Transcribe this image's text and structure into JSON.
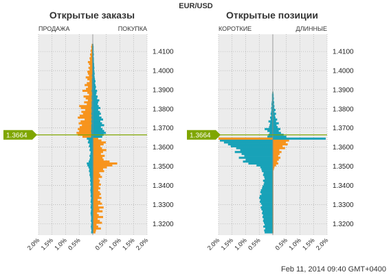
{
  "header": {
    "symbol": "EUR/USD",
    "timestamp": "Feb 11, 2014 09:40 GMT+0400"
  },
  "colors": {
    "orange": "#f7941d",
    "teal": "#18a2b8",
    "green": "#7fa600",
    "plot_bg": "#ececec",
    "grid": "#9a9a9a"
  },
  "current_price_label": "1.3664",
  "chart_data": [
    {
      "type": "bar",
      "orientation": "horizontal",
      "title": "Открытые заказы",
      "left_label": "ПРОДАЖА",
      "right_label": "ПОКУПКА",
      "current_price": 1.3664,
      "ylim": [
        1.314,
        1.419
      ],
      "xlim": [
        -2.0,
        2.0
      ],
      "y_ticks": [
        "1.4100",
        "1.4000",
        "1.3900",
        "1.3800",
        "1.3700",
        "1.3600",
        "1.3500",
        "1.3400",
        "1.3300",
        "1.3200"
      ],
      "x_ticks": [
        "2.0%",
        "1.5%",
        "1.0%",
        "0.5%",
        "0.5%",
        "1.0%",
        "1.5%",
        "2.0%"
      ],
      "bin_step": 0.001,
      "bins_bottom": [
        1.315,
        1.316,
        1.317,
        1.318,
        1.319,
        1.32,
        1.321,
        1.322,
        1.323,
        1.324,
        1.325,
        1.326,
        1.327,
        1.328,
        1.329,
        1.33,
        1.331,
        1.332,
        1.333,
        1.334,
        1.335,
        1.336,
        1.337,
        1.338,
        1.339,
        1.34,
        1.341,
        1.342,
        1.343,
        1.344,
        1.345,
        1.346,
        1.347,
        1.348,
        1.349,
        1.35,
        1.351,
        1.352,
        1.353,
        1.354,
        1.355,
        1.356,
        1.357,
        1.358,
        1.359,
        1.36,
        1.361,
        1.362,
        1.363,
        1.364,
        1.365,
        1.366,
        1.367,
        1.368,
        1.369,
        1.37,
        1.371,
        1.372,
        1.373,
        1.374,
        1.375,
        1.376,
        1.377,
        1.378,
        1.379,
        1.38,
        1.381,
        1.382,
        1.383,
        1.384,
        1.385,
        1.386,
        1.387,
        1.388,
        1.389,
        1.39,
        1.391,
        1.392,
        1.393,
        1.394,
        1.395,
        1.396,
        1.397,
        1.398,
        1.399,
        1.4,
        1.401,
        1.402,
        1.403,
        1.404,
        1.405,
        1.406,
        1.407,
        1.408,
        1.409,
        1.41,
        1.411,
        1.412,
        1.413
      ],
      "series": [
        {
          "side": "left",
          "color": "orange",
          "values": [
            0.02,
            0.02,
            0.02,
            0.03,
            0.02,
            0.02,
            0.03,
            0.02,
            0.02,
            0.03,
            0.02,
            0.03,
            0.02,
            0.03,
            0.02,
            0.02,
            0.03,
            0.02,
            0.02,
            0.03,
            0.02,
            0.03,
            0.02,
            0.02,
            0.03,
            0.02,
            0.02,
            0.03,
            0.02,
            0.03,
            0.02,
            0.03,
            0.02,
            0.03,
            0.02,
            0.02,
            0.03,
            0.02,
            0.03,
            0.02,
            0.02,
            0.03,
            0.02,
            0.03,
            0.02,
            0.02,
            0.02,
            0.03,
            0.02,
            0.02,
            0.38,
            0.55,
            0.6,
            0.5,
            0.55,
            0.48,
            0.4,
            0.52,
            0.45,
            0.3,
            0.55,
            0.48,
            0.36,
            0.42,
            0.28,
            0.44,
            0.5,
            0.22,
            0.32,
            0.18,
            0.26,
            0.34,
            0.14,
            0.2,
            0.38,
            0.25,
            0.18,
            0.3,
            0.22,
            0.12,
            0.2,
            0.26,
            0.14,
            0.18,
            0.2,
            0.12,
            0.16,
            0.1,
            0.14,
            0.18,
            0.1,
            0.12,
            0.08,
            0.1,
            0.06,
            0.08,
            0.05,
            0.06,
            0.04
          ]
        },
        {
          "side": "left",
          "color": "teal",
          "values": [
            0.06,
            0.05,
            0.06,
            0.07,
            0.06,
            0.05,
            0.07,
            0.06,
            0.06,
            0.07,
            0.08,
            0.07,
            0.06,
            0.08,
            0.07,
            0.06,
            0.08,
            0.07,
            0.06,
            0.08,
            0.07,
            0.08,
            0.09,
            0.08,
            0.07,
            0.09,
            0.08,
            0.1,
            0.09,
            0.1,
            0.12,
            0.11,
            0.14,
            0.13,
            0.16,
            0.2,
            0.22,
            0.15,
            0.12,
            0.1,
            0.12,
            0.09,
            0.08,
            0.12,
            0.1,
            0.14,
            0.12,
            0.18,
            0.16,
            0.22,
            0.06,
            0.05,
            0.05,
            0.06,
            0.05,
            0.05,
            0.05,
            0.04,
            0.05,
            0.04,
            0.05,
            0.04,
            0.05,
            0.04,
            0.04,
            0.05,
            0.04,
            0.04,
            0.04,
            0.03,
            0.04,
            0.04,
            0.03,
            0.03,
            0.04,
            0.03,
            0.03,
            0.03,
            0.03,
            0.03,
            0.03,
            0.02,
            0.03,
            0.02,
            0.02,
            0.02,
            0.02,
            0.02,
            0.02,
            0.02,
            0.02,
            0.02,
            0.02,
            0.02,
            0.02,
            0.02,
            0.02,
            0.02,
            0.02
          ]
        },
        {
          "side": "right",
          "color": "orange",
          "values": [
            0.1,
            0.12,
            0.3,
            0.2,
            0.14,
            0.34,
            0.26,
            0.18,
            0.38,
            0.22,
            0.16,
            0.36,
            0.24,
            0.4,
            0.2,
            0.34,
            0.28,
            0.18,
            0.32,
            0.24,
            0.3,
            0.26,
            0.2,
            0.28,
            0.22,
            0.3,
            0.24,
            0.26,
            0.22,
            0.34,
            0.28,
            0.24,
            0.42,
            0.38,
            0.52,
            0.72,
            0.9,
            0.62,
            0.4,
            0.36,
            0.44,
            0.3,
            0.38,
            0.5,
            0.34,
            0.28,
            0.4,
            0.48,
            0.32,
            0.2,
            0.08,
            0.07,
            0.06,
            0.06,
            0.05,
            0.05,
            0.04,
            0.05,
            0.04,
            0.04,
            0.04,
            0.03,
            0.04,
            0.03,
            0.03,
            0.03,
            0.03,
            0.03,
            0.02,
            0.03,
            0.02,
            0.02,
            0.02,
            0.02,
            0.02,
            0.02,
            0.02,
            0.02,
            0.02,
            0.02,
            0.02,
            0.02,
            0.02,
            0.02,
            0.02,
            0.02,
            0.02,
            0.02,
            0.02,
            0.02,
            0.02,
            0.02,
            0.02,
            0.02,
            0.02,
            0.02,
            0.02,
            0.02,
            0.02
          ]
        },
        {
          "side": "right",
          "color": "teal",
          "values": [
            0.02,
            0.02,
            0.02,
            0.02,
            0.02,
            0.02,
            0.02,
            0.02,
            0.02,
            0.02,
            0.02,
            0.02,
            0.02,
            0.02,
            0.02,
            0.02,
            0.02,
            0.02,
            0.02,
            0.02,
            0.02,
            0.02,
            0.02,
            0.02,
            0.02,
            0.02,
            0.02,
            0.02,
            0.02,
            0.02,
            0.02,
            0.02,
            0.02,
            0.02,
            0.02,
            0.02,
            0.02,
            0.02,
            0.02,
            0.02,
            0.02,
            0.02,
            0.02,
            0.02,
            0.02,
            0.02,
            0.02,
            0.02,
            0.02,
            0.02,
            0.35,
            0.4,
            0.48,
            0.42,
            0.36,
            0.3,
            0.42,
            0.34,
            0.28,
            0.38,
            0.32,
            0.24,
            0.3,
            0.26,
            0.2,
            0.28,
            0.22,
            0.18,
            0.2,
            0.24,
            0.16,
            0.18,
            0.12,
            0.14,
            0.16,
            0.1,
            0.12,
            0.1,
            0.08,
            0.1,
            0.08,
            0.07,
            0.06,
            0.07,
            0.06,
            0.05,
            0.06,
            0.05,
            0.05,
            0.04,
            0.04,
            0.04,
            0.03,
            0.04,
            0.03,
            0.03,
            0.03,
            0.03,
            0.02
          ]
        }
      ]
    },
    {
      "type": "bar",
      "orientation": "horizontal",
      "title": "Открытые позиции",
      "left_label": "КОРОТКИЕ",
      "right_label": "ДЛИННЫЕ",
      "current_price": 1.3664,
      "ylim": [
        1.314,
        1.419
      ],
      "xlim": [
        -2.0,
        2.0
      ],
      "y_ticks": [
        "1.4100",
        "1.4000",
        "1.3900",
        "1.3800",
        "1.3700",
        "1.3600",
        "1.3500",
        "1.3400",
        "1.3300",
        "1.3200"
      ],
      "x_ticks": [
        "2.0%",
        "1.5%",
        "1.0%",
        "0.5%",
        "0.5%",
        "1.0%",
        "1.5%",
        "2.0%"
      ],
      "bin_step": 0.001,
      "bins_bottom": [
        1.315,
        1.316,
        1.317,
        1.318,
        1.319,
        1.32,
        1.321,
        1.322,
        1.323,
        1.324,
        1.325,
        1.326,
        1.327,
        1.328,
        1.329,
        1.33,
        1.331,
        1.332,
        1.333,
        1.334,
        1.335,
        1.336,
        1.337,
        1.338,
        1.339,
        1.34,
        1.341,
        1.342,
        1.343,
        1.344,
        1.345,
        1.346,
        1.347,
        1.348,
        1.349,
        1.35,
        1.351,
        1.352,
        1.353,
        1.354,
        1.355,
        1.356,
        1.357,
        1.358,
        1.359,
        1.36,
        1.361,
        1.362,
        1.363,
        1.364,
        1.365,
        1.366,
        1.367,
        1.368,
        1.369,
        1.37,
        1.371,
        1.372,
        1.373,
        1.374,
        1.375,
        1.376,
        1.377,
        1.378,
        1.379,
        1.38,
        1.381,
        1.382,
        1.383,
        1.384,
        1.385,
        1.386,
        1.387,
        1.388
      ],
      "series": [
        {
          "side": "left",
          "color": "teal",
          "values": [
            0.3,
            0.32,
            0.28,
            0.35,
            0.3,
            0.33,
            0.36,
            0.34,
            0.38,
            0.36,
            0.4,
            0.38,
            0.42,
            0.45,
            0.4,
            0.44,
            0.48,
            0.46,
            0.5,
            0.48,
            0.42,
            0.46,
            0.44,
            0.4,
            0.38,
            0.34,
            0.32,
            0.36,
            0.3,
            0.32,
            0.36,
            0.34,
            0.4,
            0.42,
            0.46,
            0.6,
            0.9,
            1.1,
            1.0,
            1.25,
            1.05,
            1.15,
            1.4,
            1.2,
            1.35,
            1.55,
            1.65,
            1.8,
            1.95,
            2.0,
            0.2,
            0.16,
            0.12,
            0.2,
            0.3,
            0.14,
            0.12,
            0.1,
            0.16,
            0.08,
            0.1,
            0.06,
            0.08,
            0.06,
            0.05,
            0.06,
            0.04,
            0.05,
            0.04,
            0.03,
            0.03,
            0.03,
            0.03,
            0.02
          ]
        },
        {
          "side": "left",
          "color": "orange",
          "values": [
            0.01,
            0.01,
            0.01,
            0.01,
            0.01,
            0.01,
            0.01,
            0.01,
            0.01,
            0.01,
            0.01,
            0.01,
            0.01,
            0.01,
            0.01,
            0.01,
            0.01,
            0.01,
            0.01,
            0.01,
            0.01,
            0.01,
            0.01,
            0.01,
            0.01,
            0.01,
            0.01,
            0.01,
            0.01,
            0.01,
            0.01,
            0.01,
            0.01,
            0.01,
            0.01,
            0.01,
            0.01,
            0.01,
            0.01,
            0.01,
            0.01,
            0.01,
            0.01,
            0.01,
            0.01,
            0.01,
            0.01,
            0.01,
            0.01,
            2.0,
            0.01,
            0.01,
            0.01,
            0.01,
            0.01,
            0.01,
            0.01,
            0.01,
            0.01,
            0.01,
            0.01,
            0.01,
            0.01,
            0.01,
            0.01,
            0.01,
            0.01,
            0.01,
            0.01,
            0.01,
            0.01,
            0.01,
            0.01,
            0.01
          ]
        },
        {
          "side": "right",
          "color": "orange",
          "values": [
            0.02,
            0.02,
            0.02,
            0.02,
            0.02,
            0.02,
            0.02,
            0.02,
            0.02,
            0.02,
            0.02,
            0.02,
            0.02,
            0.02,
            0.02,
            0.02,
            0.02,
            0.02,
            0.02,
            0.02,
            0.02,
            0.02,
            0.02,
            0.02,
            0.02,
            0.02,
            0.02,
            0.02,
            0.02,
            0.02,
            0.02,
            0.02,
            0.02,
            0.04,
            0.06,
            0.12,
            0.2,
            0.16,
            0.22,
            0.28,
            0.2,
            0.25,
            0.32,
            0.24,
            0.45,
            0.36,
            0.55,
            0.48,
            0.6,
            0.3,
            0.02,
            0.02,
            0.02,
            0.02,
            0.02,
            0.02,
            0.02,
            0.02,
            0.02,
            0.02,
            0.02,
            0.02,
            0.02,
            0.02,
            0.02,
            0.02,
            0.02,
            0.02,
            0.02,
            0.02,
            0.02,
            0.02,
            0.02,
            0.02
          ]
        },
        {
          "side": "right",
          "color": "teal",
          "values": [
            0.01,
            0.01,
            0.01,
            0.01,
            0.01,
            0.01,
            0.01,
            0.01,
            0.01,
            0.01,
            0.01,
            0.01,
            0.01,
            0.01,
            0.01,
            0.01,
            0.01,
            0.01,
            0.01,
            0.01,
            0.01,
            0.01,
            0.01,
            0.01,
            0.01,
            0.01,
            0.01,
            0.01,
            0.01,
            0.01,
            0.01,
            0.01,
            0.01,
            0.01,
            0.01,
            0.01,
            0.01,
            0.01,
            0.01,
            0.01,
            0.01,
            0.01,
            0.01,
            0.01,
            0.01,
            0.01,
            0.01,
            0.01,
            0.01,
            1.95,
            0.5,
            0.4,
            0.3,
            0.22,
            0.28,
            0.18,
            0.14,
            0.22,
            0.12,
            0.16,
            0.1,
            0.08,
            0.12,
            0.06,
            0.1,
            0.05,
            0.06,
            0.04,
            0.05,
            0.03,
            0.04,
            0.03,
            0.03,
            0.02
          ]
        }
      ]
    }
  ]
}
